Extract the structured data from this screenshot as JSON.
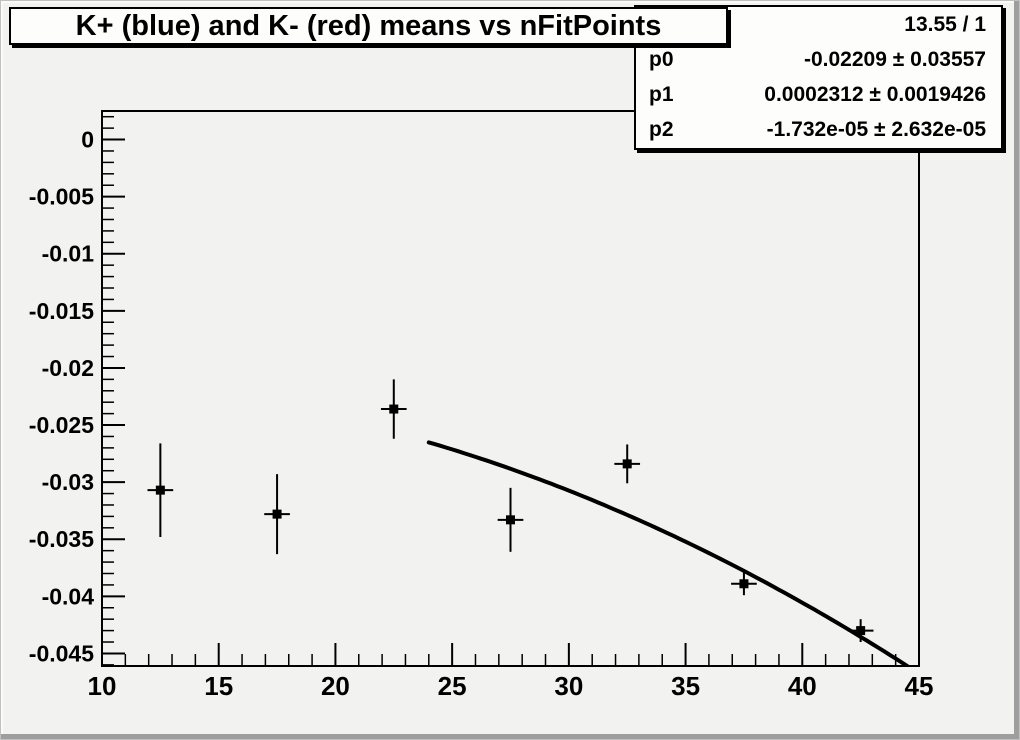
{
  "title": "K+ (blue) and K- (red) means vs nFitPoints",
  "stats": {
    "chi2": "13.55 / 1",
    "params": [
      {
        "name": "p0",
        "value": "-0.02209 ± 0.03557"
      },
      {
        "name": "p1",
        "value": "0.0002312 ± 0.0019426"
      },
      {
        "name": "p2",
        "value": "-1.732e-05 ± 2.632e-05"
      }
    ]
  },
  "colors": {
    "canvas_bg": "#f2f2f0",
    "pave_bg": "#fdfdfc",
    "axis": "#000000",
    "marker": "#000000",
    "fit_line": "#000000",
    "canvas_shadow_edge": "#9e9e9e"
  },
  "chart_data": {
    "type": "scatter",
    "title": "K+ (blue) and K- (red) means vs nFitPoints",
    "xlabel": "",
    "ylabel": "",
    "x_range": [
      10,
      45
    ],
    "y_range": [
      -0.0461,
      0.0025
    ],
    "grid": false,
    "legend": null,
    "x_major_ticks": [
      {
        "v": 10,
        "label": "10"
      },
      {
        "v": 15,
        "label": "15"
      },
      {
        "v": 20,
        "label": "20"
      },
      {
        "v": 25,
        "label": "25"
      },
      {
        "v": 30,
        "label": "30"
      },
      {
        "v": 35,
        "label": "35"
      },
      {
        "v": 40,
        "label": "40"
      },
      {
        "v": 45,
        "label": "45"
      }
    ],
    "x_minor_step": 1,
    "y_major_ticks": [
      {
        "v": 0,
        "label": "0"
      },
      {
        "v": -0.005,
        "label": "-0.005"
      },
      {
        "v": -0.01,
        "label": "-0.01"
      },
      {
        "v": -0.015,
        "label": "-0.015"
      },
      {
        "v": -0.02,
        "label": "-0.02"
      },
      {
        "v": -0.025,
        "label": "-0.025"
      },
      {
        "v": -0.03,
        "label": "-0.03"
      },
      {
        "v": -0.035,
        "label": "-0.035"
      },
      {
        "v": -0.04,
        "label": "-0.04"
      },
      {
        "v": -0.045,
        "label": "-0.045"
      }
    ],
    "y_minor_step": 0.001,
    "points": [
      {
        "x": 12.5,
        "y": -0.0307,
        "ey": 0.0041,
        "ex": 0.55
      },
      {
        "x": 17.5,
        "y": -0.0328,
        "ey": 0.0035,
        "ex": 0.55
      },
      {
        "x": 22.5,
        "y": -0.0236,
        "ey": 0.0026,
        "ex": 0.55
      },
      {
        "x": 27.5,
        "y": -0.0333,
        "ey": 0.0028,
        "ex": 0.55
      },
      {
        "x": 32.5,
        "y": -0.0284,
        "ey": 0.0017,
        "ex": 0.55
      },
      {
        "x": 37.5,
        "y": -0.0389,
        "ey": 0.001,
        "ex": 0.55
      },
      {
        "x": 42.5,
        "y": -0.043,
        "ey": 0.001,
        "ex": 0.55
      }
    ],
    "fit_curve": {
      "type": "pol2",
      "p0": -0.02209,
      "p1": 0.0002312,
      "p2": -1.732e-05,
      "x_min": 24.0,
      "x_max": 44.55
    }
  }
}
